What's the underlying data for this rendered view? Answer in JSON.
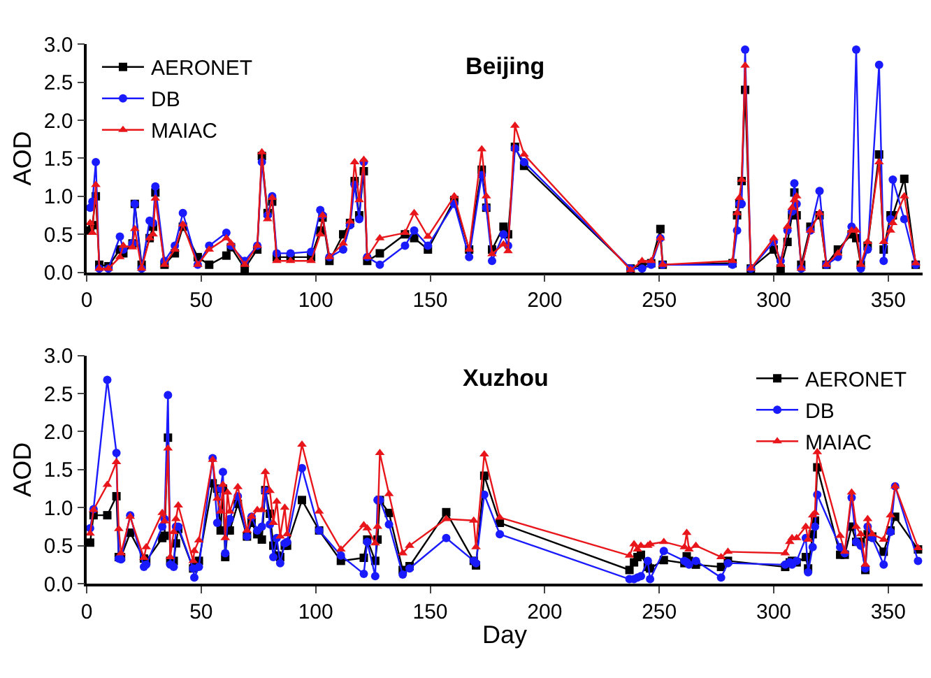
{
  "chart_data": [
    {
      "type": "line",
      "title": "Beijing",
      "ylabel": "AOD",
      "xlim": [
        0,
        365
      ],
      "ylim": [
        0,
        3.0
      ],
      "xticks": [
        0,
        50,
        100,
        150,
        200,
        250,
        300,
        350
      ],
      "yticks": [
        {
          "value": 0,
          "label": "0.0"
        },
        0.5,
        {
          "value": 1,
          "label": "1.0"
        },
        1.5,
        {
          "value": 2,
          "label": "2.0"
        },
        2.5,
        {
          "value": 3,
          "label": "3.0"
        }
      ],
      "legend": "top left",
      "x": [
        1.5,
        2.5,
        4,
        5.5,
        9.5,
        14.5,
        16,
        20,
        21,
        24,
        27.5,
        29,
        30,
        34,
        38.5,
        42,
        48.5,
        53.5,
        61,
        63,
        69,
        74.5,
        76.5,
        79,
        81,
        83,
        89,
        98,
        102,
        103,
        106,
        112,
        115,
        117,
        119,
        121,
        122.5,
        128,
        139,
        143,
        149,
        160.5,
        167,
        172.5,
        174.5,
        177,
        182,
        184,
        187,
        191,
        237.5,
        242.5,
        246.5,
        250.5,
        251.5,
        282,
        284,
        285,
        286,
        287.5,
        290,
        300,
        303,
        306,
        308,
        309,
        310,
        312,
        316,
        320,
        323,
        328,
        334,
        336,
        338,
        341,
        346,
        348,
        351,
        352,
        357,
        362
      ],
      "series": [
        {
          "name": "AERONET",
          "color": "#000000",
          "marker": "square",
          "values": [
            0.55,
            0.62,
            1.0,
            0.1,
            0.08,
            0.3,
            0.25,
            0.38,
            0.9,
            0.1,
            0.45,
            0.6,
            1.05,
            0.1,
            0.25,
            0.6,
            0.2,
            0.1,
            0.22,
            0.33,
            0.05,
            0.3,
            1.53,
            0.78,
            0.93,
            0.2,
            0.2,
            0.2,
            0.55,
            0.72,
            0.15,
            0.5,
            0.65,
            1.2,
            0.75,
            1.33,
            0.15,
            0.25,
            0.5,
            0.45,
            0.3,
            0.95,
            0.3,
            1.35,
            0.85,
            0.3,
            0.6,
            0.5,
            1.65,
            1.4,
            0.05,
            0.1,
            0.12,
            0.57,
            0.1,
            0.12,
            0.75,
            0.9,
            1.2,
            2.4,
            0.05,
            0.3,
            0.05,
            0.4,
            0.75,
            1.05,
            0.75,
            0.1,
            0.6,
            0.75,
            0.1,
            0.3,
            0.5,
            0.45,
            0.1,
            0.35,
            1.55,
            0.3,
            0.75,
            0.75,
            1.23,
            0.1
          ]
        },
        {
          "name": "DB",
          "color": "#1a1aff",
          "marker": "circle",
          "values": [
            0.85,
            0.93,
            1.45,
            0.05,
            0.05,
            0.47,
            0.3,
            0.38,
            0.9,
            0.05,
            0.68,
            0.65,
            1.13,
            0.15,
            0.35,
            0.78,
            0.1,
            0.35,
            0.52,
            0.35,
            0.15,
            0.35,
            1.45,
            0.75,
            1.0,
            0.25,
            0.25,
            0.27,
            0.82,
            0.75,
            0.2,
            0.3,
            0.62,
            1.15,
            0.7,
            1.45,
            0.2,
            0.1,
            0.35,
            0.55,
            0.35,
            0.9,
            0.2,
            1.28,
            0.85,
            0.15,
            0.5,
            0.35,
            1.63,
            1.45,
            0.05,
            0.05,
            0.1,
            0.45,
            0.1,
            0.1,
            0.55,
            0.9,
            0.9,
            2.93,
            0.05,
            0.4,
            0.15,
            0.55,
            0.8,
            1.17,
            0.9,
            0.05,
            0.55,
            1.07,
            0.1,
            0.2,
            0.6,
            2.93,
            0.05,
            0.3,
            2.73,
            0.15,
            0.7,
            1.22,
            0.7,
            0.1
          ]
        },
        {
          "name": "MAIAC",
          "color": "#e8161b",
          "marker": "triangle",
          "values": [
            0.65,
            0.52,
            1.15,
            0.05,
            0.05,
            0.2,
            0.35,
            0.33,
            0.57,
            0.05,
            0.45,
            0.5,
            0.97,
            0.1,
            0.3,
            0.63,
            0.1,
            0.3,
            0.45,
            0.38,
            0.1,
            0.35,
            1.58,
            0.7,
            0.98,
            0.15,
            0.15,
            0.15,
            0.5,
            0.75,
            0.2,
            0.38,
            0.67,
            1.45,
            0.95,
            1.48,
            0.2,
            0.45,
            0.52,
            0.78,
            0.47,
            1.0,
            0.3,
            1.62,
            1.0,
            0.24,
            0.37,
            0.28,
            1.93,
            1.55,
            0.03,
            0.15,
            0.15,
            0.45,
            0.1,
            0.15,
            0.78,
            0.98,
            1.22,
            2.72,
            0.05,
            0.45,
            0.1,
            0.6,
            0.85,
            0.95,
            1.0,
            0.05,
            0.55,
            0.78,
            0.1,
            0.25,
            0.55,
            0.55,
            0.1,
            0.4,
            1.45,
            0.4,
            0.55,
            0.65,
            1.0,
            0.12
          ]
        }
      ]
    },
    {
      "type": "line",
      "title": "Xuzhou",
      "xlabel": "Day",
      "ylabel": "AOD",
      "xlim": [
        0,
        365
      ],
      "ylim": [
        0,
        3.0
      ],
      "xticks": [
        0,
        50,
        100,
        150,
        200,
        250,
        300,
        350
      ],
      "yticks": [
        {
          "value": 0,
          "label": "0.0"
        },
        0.5,
        {
          "value": 1,
          "label": "1.0"
        },
        1.5,
        {
          "value": 2,
          "label": "2.0"
        },
        2.5,
        {
          "value": 3,
          "label": "3.0"
        }
      ],
      "legend": "top right",
      "x": [
        1.5,
        3,
        9,
        13,
        14,
        15,
        19,
        25,
        26,
        33,
        34,
        35.5,
        36.5,
        38,
        39,
        40,
        46.5,
        47,
        49,
        55,
        57,
        58.5,
        59.5,
        60.5,
        61.5,
        62.5,
        66,
        70,
        72,
        74.5,
        76.5,
        78,
        80,
        81.5,
        83,
        84.5,
        86.5,
        87.5,
        94,
        101.5,
        111,
        121,
        122.5,
        126,
        127,
        128,
        132,
        138,
        141,
        157,
        169,
        170,
        173.6,
        180.4,
        237,
        239,
        240.5,
        242,
        245,
        246,
        252,
        261,
        262,
        263,
        266,
        277,
        280,
        305,
        307,
        308,
        310,
        314,
        315,
        317,
        318,
        319,
        329,
        331,
        334,
        336,
        338,
        340,
        341,
        343,
        348,
        351,
        353,
        363
      ],
      "series": [
        {
          "name": "AERONET",
          "color": "#000000",
          "marker": "square",
          "values": [
            0.54,
            0.9,
            0.9,
            1.15,
            0.35,
            0.35,
            0.67,
            0.33,
            0.3,
            0.6,
            0.63,
            1.92,
            0.3,
            0.3,
            0.53,
            0.72,
            0.2,
            0.22,
            0.3,
            1.32,
            1.25,
            0.7,
            1.25,
            0.35,
            0.7,
            0.7,
            1.05,
            0.62,
            0.8,
            0.65,
            0.58,
            1.23,
            0.92,
            0.5,
            0.37,
            0.35,
            0.5,
            0.5,
            1.1,
            0.7,
            0.3,
            0.34,
            0.58,
            0.3,
            0.58,
            1.1,
            0.93,
            0.18,
            0.23,
            0.94,
            0.3,
            0.24,
            1.42,
            0.8,
            0.18,
            0.28,
            0.35,
            0.38,
            0.22,
            0.2,
            0.31,
            0.27,
            0.36,
            0.3,
            0.25,
            0.22,
            0.3,
            0.22,
            0.28,
            0.3,
            0.28,
            0.35,
            0.2,
            0.65,
            0.83,
            1.53,
            0.38,
            0.38,
            0.75,
            0.55,
            0.55,
            0.18,
            0.65,
            0.62,
            0.42,
            0.7,
            0.88,
            0.45
          ]
        },
        {
          "name": "DB",
          "color": "#1a1aff",
          "marker": "circle",
          "values": [
            0.73,
            0.98,
            2.68,
            1.72,
            0.33,
            0.32,
            0.9,
            0.22,
            0.25,
            0.75,
            0.85,
            2.48,
            0.25,
            0.22,
            0.75,
            0.75,
            0.2,
            0.08,
            0.22,
            1.65,
            0.8,
            1.25,
            1.47,
            0.4,
            0.8,
            0.85,
            1.15,
            0.62,
            0.88,
            0.7,
            0.75,
            1.22,
            0.78,
            0.35,
            0.6,
            0.27,
            0.53,
            0.55,
            1.52,
            0.7,
            0.37,
            0.13,
            0.55,
            0.1,
            1.1,
            1.1,
            0.78,
            0.12,
            0.2,
            0.6,
            0.3,
            0.27,
            1.17,
            0.65,
            0.06,
            0.06,
            0.08,
            0.1,
            0.3,
            0.06,
            0.43,
            0.3,
            0.28,
            0.25,
            0.3,
            0.08,
            0.27,
            0.25,
            0.28,
            0.25,
            0.3,
            0.6,
            0.15,
            0.48,
            0.75,
            1.17,
            0.48,
            0.4,
            1.13,
            0.55,
            0.5,
            0.2,
            0.75,
            0.6,
            0.25,
            0.68,
            1.28,
            0.3
          ]
        },
        {
          "name": "MAIAC",
          "color": "#e8161b",
          "marker": "triangle",
          "values": [
            0.66,
            0.97,
            1.3,
            1.6,
            0.72,
            0.4,
            0.88,
            0.34,
            0.48,
            0.93,
            0.82,
            1.78,
            0.35,
            0.68,
            0.85,
            1.03,
            0.3,
            0.43,
            0.57,
            1.63,
            1.12,
            0.95,
            1.3,
            0.6,
            1.2,
            0.95,
            1.27,
            0.7,
            0.88,
            0.97,
            0.97,
            1.47,
            1.22,
            0.8,
            1.08,
            0.62,
            1.0,
            0.65,
            1.83,
            0.95,
            0.45,
            0.77,
            0.73,
            0.53,
            0.75,
            1.72,
            1.18,
            0.4,
            0.5,
            0.85,
            0.83,
            0.48,
            1.7,
            0.87,
            0.37,
            0.52,
            0.45,
            0.5,
            0.5,
            0.52,
            0.55,
            0.48,
            0.67,
            0.45,
            0.5,
            0.35,
            0.42,
            0.4,
            0.55,
            0.6,
            0.6,
            0.75,
            0.58,
            0.9,
            0.93,
            1.73,
            0.63,
            0.42,
            1.2,
            0.75,
            0.65,
            0.25,
            0.85,
            0.65,
            0.58,
            0.9,
            1.28,
            0.47
          ]
        }
      ]
    }
  ]
}
